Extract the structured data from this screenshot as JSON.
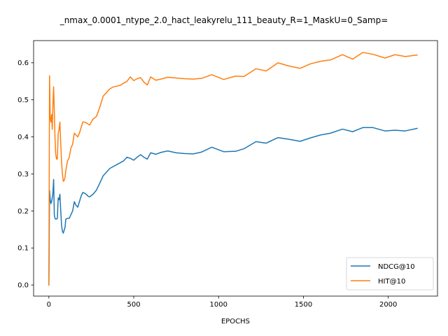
{
  "chart_data": {
    "type": "line",
    "title": "_nmax_0.0001_ntype_2.0_hact_leakyrelu_111_beauty_R=1_MaskU=0_Samp=",
    "xlabel": "EPOCHS",
    "ylabel": "",
    "xlim": [
      -90,
      2290
    ],
    "ylim": [
      -0.03,
      0.66
    ],
    "xticks": [
      0,
      500,
      1000,
      1500,
      2000
    ],
    "xtick_labels": [
      "0",
      "500",
      "1000",
      "1500",
      "2000"
    ],
    "yticks": [
      0.0,
      0.1,
      0.2,
      0.3,
      0.4,
      0.5,
      0.6
    ],
    "ytick_labels": [
      "0.0",
      "0.1",
      "0.2",
      "0.3",
      "0.4",
      "0.5",
      "0.6"
    ],
    "grid": false,
    "legend_position": "lower-right",
    "series": [
      {
        "name": "NDCG@10",
        "color": "#1f77b4",
        "x": [
          0,
          4,
          8,
          12,
          16,
          20,
          24,
          28,
          32,
          36,
          40,
          45,
          50,
          55,
          60,
          65,
          70,
          75,
          80,
          85,
          90,
          95,
          100,
          110,
          120,
          130,
          140,
          150,
          160,
          170,
          180,
          190,
          200,
          210,
          220,
          230,
          240,
          260,
          280,
          300,
          320,
          340,
          360,
          380,
          400,
          420,
          440,
          460,
          480,
          500,
          520,
          540,
          560,
          580,
          600,
          630,
          660,
          700,
          750,
          800,
          850,
          900,
          960,
          1030,
          1100,
          1150,
          1220,
          1280,
          1350,
          1410,
          1480,
          1540,
          1600,
          1660,
          1730,
          1790,
          1850,
          1910,
          1980,
          2040,
          2100,
          2170
        ],
        "y": [
          0.0,
          0.255,
          0.23,
          0.22,
          0.225,
          0.235,
          0.25,
          0.285,
          0.19,
          0.18,
          0.178,
          0.178,
          0.18,
          0.235,
          0.23,
          0.245,
          0.2,
          0.16,
          0.145,
          0.14,
          0.148,
          0.155,
          0.178,
          0.18,
          0.18,
          0.19,
          0.2,
          0.225,
          0.215,
          0.21,
          0.225,
          0.24,
          0.25,
          0.248,
          0.245,
          0.24,
          0.238,
          0.245,
          0.256,
          0.275,
          0.295,
          0.305,
          0.315,
          0.32,
          0.325,
          0.33,
          0.335,
          0.345,
          0.342,
          0.337,
          0.345,
          0.352,
          0.345,
          0.34,
          0.357,
          0.353,
          0.358,
          0.362,
          0.357,
          0.355,
          0.354,
          0.359,
          0.372,
          0.36,
          0.361,
          0.368,
          0.387,
          0.383,
          0.398,
          0.394,
          0.388,
          0.397,
          0.405,
          0.41,
          0.421,
          0.414,
          0.425,
          0.425,
          0.416,
          0.418,
          0.416,
          0.423
        ]
      },
      {
        "name": "HIT@10",
        "color": "#ff7f0e",
        "x": [
          0,
          4,
          8,
          12,
          16,
          20,
          24,
          28,
          32,
          36,
          40,
          45,
          50,
          55,
          60,
          65,
          70,
          75,
          80,
          85,
          90,
          95,
          100,
          110,
          120,
          130,
          140,
          150,
          160,
          170,
          180,
          190,
          200,
          210,
          220,
          230,
          240,
          260,
          280,
          300,
          320,
          340,
          360,
          380,
          400,
          420,
          440,
          460,
          480,
          500,
          520,
          540,
          560,
          580,
          600,
          630,
          660,
          700,
          750,
          800,
          850,
          900,
          960,
          1030,
          1100,
          1150,
          1220,
          1280,
          1350,
          1410,
          1480,
          1540,
          1600,
          1660,
          1730,
          1790,
          1850,
          1910,
          1980,
          2040,
          2100,
          2170
        ],
        "y": [
          0.0,
          0.565,
          0.45,
          0.44,
          0.46,
          0.42,
          0.49,
          0.535,
          0.47,
          0.4,
          0.355,
          0.34,
          0.34,
          0.41,
          0.42,
          0.44,
          0.38,
          0.33,
          0.3,
          0.28,
          0.282,
          0.29,
          0.31,
          0.335,
          0.345,
          0.37,
          0.38,
          0.41,
          0.405,
          0.4,
          0.41,
          0.425,
          0.44,
          0.44,
          0.438,
          0.435,
          0.432,
          0.448,
          0.455,
          0.48,
          0.51,
          0.52,
          0.53,
          0.535,
          0.537,
          0.539,
          0.545,
          0.55,
          0.562,
          0.552,
          0.557,
          0.56,
          0.548,
          0.54,
          0.562,
          0.553,
          0.556,
          0.561,
          0.559,
          0.557,
          0.556,
          0.558,
          0.568,
          0.555,
          0.564,
          0.563,
          0.584,
          0.578,
          0.6,
          0.592,
          0.585,
          0.597,
          0.604,
          0.608,
          0.622,
          0.61,
          0.628,
          0.623,
          0.613,
          0.622,
          0.617,
          0.621
        ]
      }
    ]
  }
}
